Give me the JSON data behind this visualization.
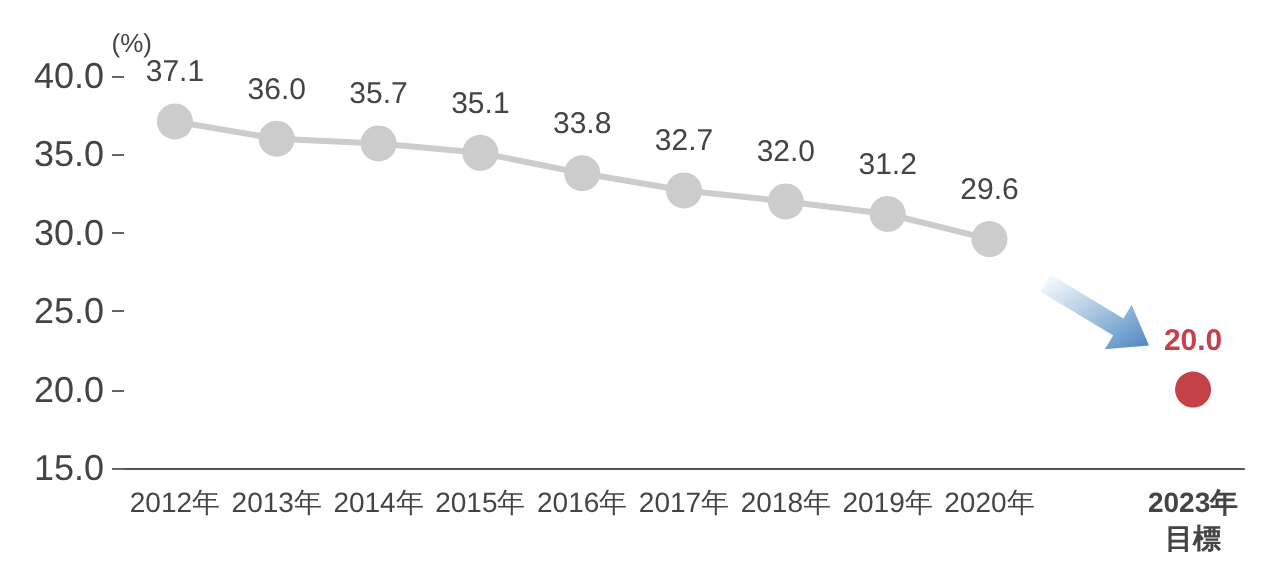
{
  "chart_data": {
    "type": "line",
    "ylabel": "(%)",
    "categories": [
      "2012年",
      "2013年",
      "2014年",
      "2015年",
      "2016年",
      "2017年",
      "2018年",
      "2019年",
      "2020年",
      null,
      "2023年目標"
    ],
    "series": [
      {
        "color": "#cccccc",
        "values": [
          37.1,
          36.0,
          35.7,
          35.1,
          33.8,
          32.7,
          32.0,
          31.2,
          29.6,
          null,
          null
        ],
        "value_labels": [
          "37.1",
          "36.0",
          "35.7",
          "35.1",
          "33.8",
          "32.7",
          "32.0",
          "31.2",
          "29.6",
          null,
          null
        ]
      },
      {
        "type": "scatter",
        "color": "#b5121b",
        "values": [
          null,
          null,
          null,
          null,
          null,
          null,
          null,
          null,
          null,
          null,
          20.0
        ],
        "value_labels": [
          null,
          null,
          null,
          null,
          null,
          null,
          null,
          null,
          null,
          null,
          "20.0"
        ]
      }
    ],
    "ylim": [
      15,
      40
    ],
    "yticks": [
      {
        "value": 15,
        "label": "15.0"
      },
      {
        "value": 20,
        "label": "20.0"
      },
      {
        "value": 25,
        "label": "25.0"
      },
      {
        "value": 30,
        "label": "30.0"
      },
      {
        "value": 35,
        "label": "35.0"
      },
      {
        "value": 40,
        "label": "40.0"
      }
    ],
    "marker": "circle",
    "line_style": "solid"
  }
}
